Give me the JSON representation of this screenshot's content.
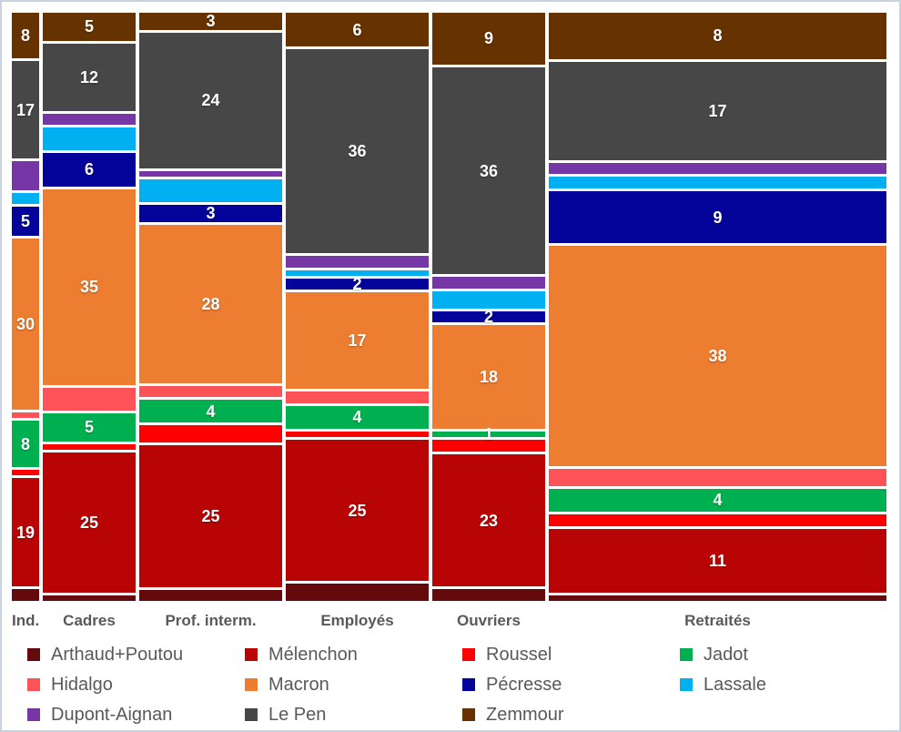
{
  "frame": {
    "border_color": "#c9d3df",
    "background_color": "#ffffff"
  },
  "text_color": "#595959",
  "chart_data": {
    "type": "bar",
    "subtype": "mosaic-marimekko-100pct-stacked",
    "title": "",
    "xlabel": "",
    "ylabel": "",
    "grid": false,
    "legend_position": "bottom",
    "categories": [
      "Ind.",
      "Cadres",
      "Prof. interm.",
      "Employés",
      "Ouvriers",
      "Retraités"
    ],
    "category_width_units": [
      30,
      102,
      157,
      157,
      124,
      371
    ],
    "stack_top_to_bottom": [
      "Zemmour",
      "Le Pen",
      "Dupont-Aignan",
      "Lassale",
      "Pécresse",
      "Macron",
      "Hidalgo",
      "Jadot",
      "Roussel",
      "Mélenchon",
      "Arthaud+Poutou"
    ],
    "series": [
      {
        "name": "Arthaud+Poutou",
        "color": "#640a0c",
        "labeled": false,
        "values": [
          2,
          1,
          2,
          3,
          2,
          1
        ]
      },
      {
        "name": "Mélenchon",
        "color": "#b80404",
        "labeled": true,
        "values": [
          19,
          25,
          25,
          25,
          23,
          11
        ]
      },
      {
        "name": "Roussel",
        "color": "#ff0000",
        "labeled": false,
        "values": [
          1,
          1,
          3,
          1,
          2,
          2
        ]
      },
      {
        "name": "Jadot",
        "color": "#00b050",
        "labeled": true,
        "values": [
          8,
          5,
          4,
          4,
          1,
          4
        ]
      },
      {
        "name": "Hidalgo",
        "color": "#fd5258",
        "labeled": false,
        "values": [
          1,
          4,
          2,
          2,
          0,
          3
        ]
      },
      {
        "name": "Macron",
        "color": "#ed7d31",
        "labeled": true,
        "values": [
          30,
          35,
          28,
          17,
          18,
          38
        ]
      },
      {
        "name": "Pécresse",
        "color": "#04049a",
        "labeled": true,
        "values": [
          5,
          6,
          3,
          2,
          2,
          9
        ]
      },
      {
        "name": "Lassale",
        "color": "#00b0f0",
        "labeled": false,
        "values": [
          2,
          4,
          4,
          1,
          3,
          2
        ]
      },
      {
        "name": "Dupont-Aignan",
        "color": "#7636a6",
        "labeled": false,
        "values": [
          5,
          2,
          1,
          2,
          2,
          2
        ]
      },
      {
        "name": "Le Pen",
        "color": "#474747",
        "labeled": true,
        "values": [
          17,
          12,
          24,
          36,
          36,
          17
        ]
      },
      {
        "name": "Zemmour",
        "color": "#663300",
        "labeled": true,
        "values": [
          8,
          5,
          3,
          6,
          9,
          8
        ]
      }
    ],
    "legend_order": [
      "Arthaud+Poutou",
      "Mélenchon",
      "Roussel",
      "Jadot",
      "Hidalgo",
      "Macron",
      "Pécresse",
      "Lassale",
      "Dupont-Aignan",
      "Le Pen",
      "Zemmour"
    ]
  }
}
